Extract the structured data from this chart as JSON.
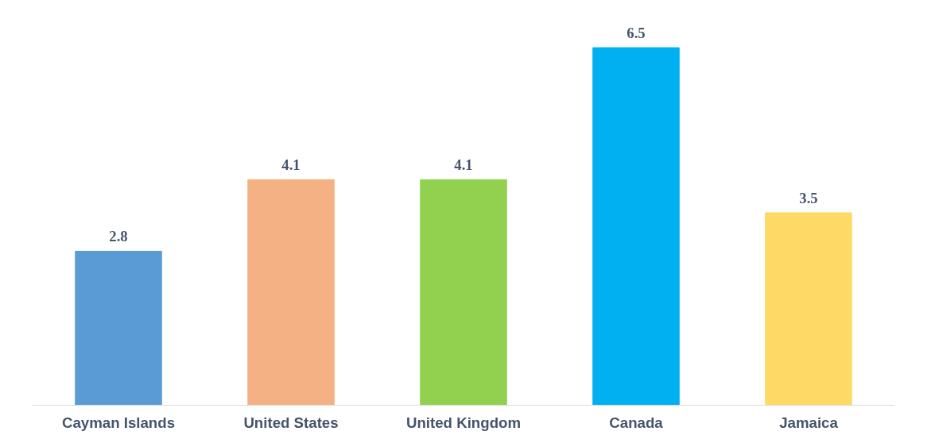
{
  "chart_data": {
    "type": "bar",
    "categories": [
      "Cayman Islands",
      "United States",
      "United Kingdom",
      "Canada",
      "Jamaica"
    ],
    "values": [
      2.8,
      4.1,
      4.1,
      6.5,
      3.5
    ],
    "colors": [
      "#5b9bd5",
      "#f4b183",
      "#92d050",
      "#00b0f0",
      "#ffd966"
    ],
    "data_labels": true,
    "grid": false
  }
}
